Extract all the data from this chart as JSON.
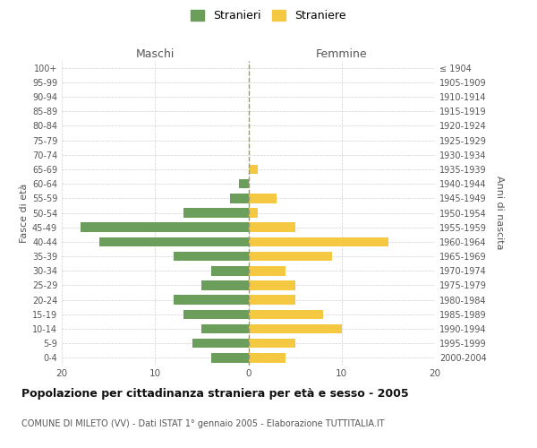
{
  "age_groups": [
    "0-4",
    "5-9",
    "10-14",
    "15-19",
    "20-24",
    "25-29",
    "30-34",
    "35-39",
    "40-44",
    "45-49",
    "50-54",
    "55-59",
    "60-64",
    "65-69",
    "70-74",
    "75-79",
    "80-84",
    "85-89",
    "90-94",
    "95-99",
    "100+"
  ],
  "birth_years": [
    "2000-2004",
    "1995-1999",
    "1990-1994",
    "1985-1989",
    "1980-1984",
    "1975-1979",
    "1970-1974",
    "1965-1969",
    "1960-1964",
    "1955-1959",
    "1950-1954",
    "1945-1949",
    "1940-1944",
    "1935-1939",
    "1930-1934",
    "1925-1929",
    "1920-1924",
    "1915-1919",
    "1910-1914",
    "1905-1909",
    "≤ 1904"
  ],
  "maschi": [
    4,
    6,
    5,
    7,
    8,
    5,
    4,
    8,
    16,
    18,
    7,
    2,
    1,
    0,
    0,
    0,
    0,
    0,
    0,
    0,
    0
  ],
  "femmine": [
    4,
    5,
    10,
    8,
    5,
    5,
    4,
    9,
    15,
    5,
    1,
    3,
    0,
    1,
    0,
    0,
    0,
    0,
    0,
    0,
    0
  ],
  "maschi_color": "#6a9e5a",
  "femmine_color": "#f5c842",
  "title": "Popolazione per cittadinanza straniera per età e sesso - 2005",
  "subtitle": "COMUNE DI MILETO (VV) - Dati ISTAT 1° gennaio 2005 - Elaborazione TUTTITALIA.IT",
  "legend_maschi": "Stranieri",
  "legend_femmine": "Straniere",
  "xlabel_left": "Maschi",
  "xlabel_right": "Femmine",
  "ylabel_left": "Fasce di età",
  "ylabel_right": "Anni di nascita",
  "xlim": 20,
  "background_color": "#ffffff",
  "grid_color": "#cccccc"
}
